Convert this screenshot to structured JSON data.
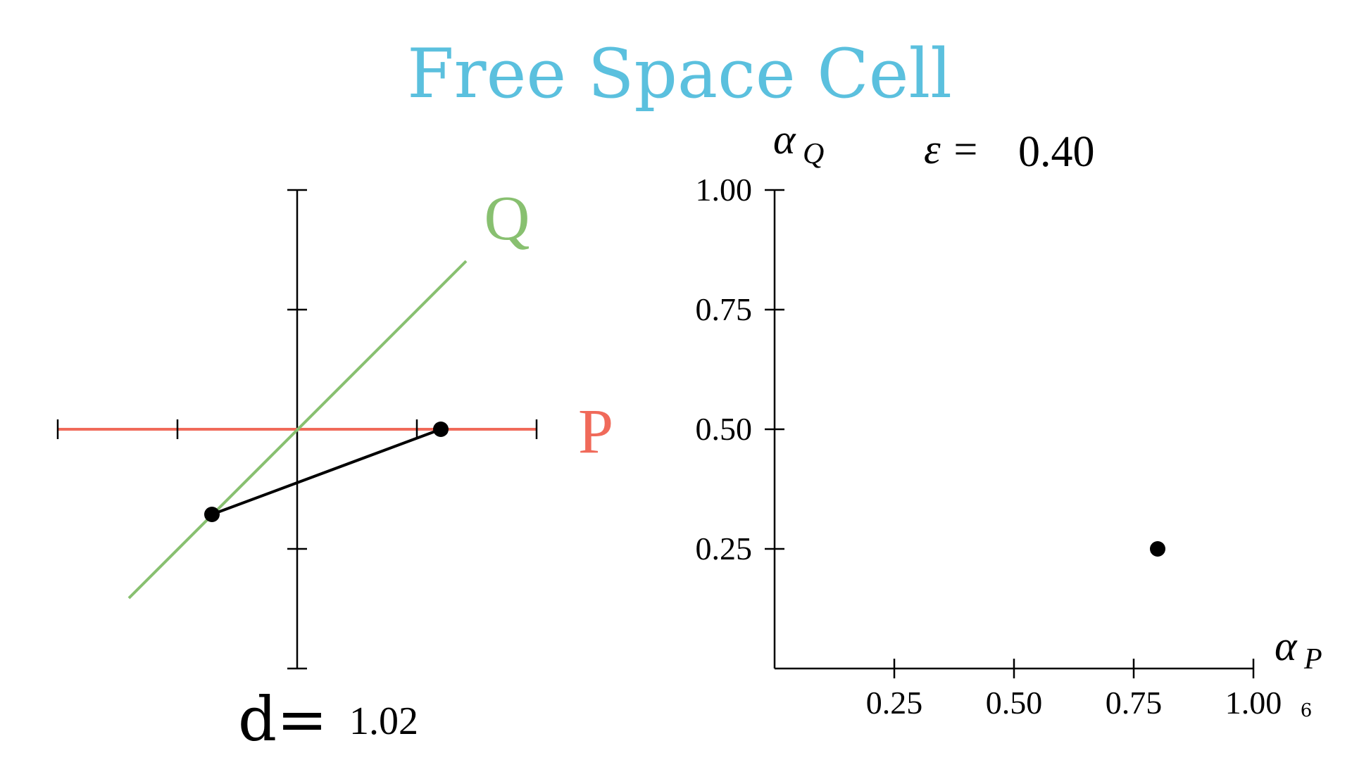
{
  "title": "Free Space Cell",
  "colors": {
    "title": "#5BC0DE",
    "P": "#F06A5A",
    "Q": "#88C070",
    "ink": "#000000"
  },
  "left_diagram": {
    "label_P": "P",
    "label_Q": "Q",
    "distance_label": "d=",
    "distance_value": "1.02"
  },
  "right_plot": {
    "epsilon_label": "ε = ",
    "epsilon_value": "0.40",
    "x_axis_label": "α",
    "x_axis_sub": "P",
    "y_axis_label": "α",
    "y_axis_sub": "Q",
    "page_number": "6"
  },
  "chart_data": {
    "type": "scatter",
    "x_ticks": [
      "0.25",
      "0.50",
      "0.75",
      "1.00"
    ],
    "y_ticks": [
      "0.25",
      "0.50",
      "0.75",
      "1.00"
    ],
    "xlim": [
      0,
      1
    ],
    "ylim": [
      0,
      1
    ],
    "series": [
      {
        "x": [
          0.8
        ],
        "y": [
          0.25
        ]
      }
    ]
  }
}
